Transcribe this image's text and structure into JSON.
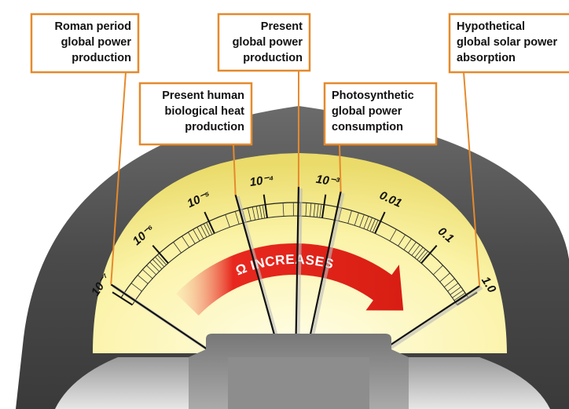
{
  "callouts": [
    {
      "lines": [
        "Roman period",
        "global power",
        "production"
      ]
    },
    {
      "lines": [
        "Present human",
        "biological heat",
        "production"
      ]
    },
    {
      "lines": [
        "Present",
        "global power",
        "production"
      ]
    },
    {
      "lines": [
        "Photosynthetic",
        "global power",
        "consumption"
      ]
    },
    {
      "lines": [
        "Hypothetical",
        "global solar power",
        "absorption"
      ]
    }
  ],
  "scale_labels": [
    "10⁻⁷",
    "10⁻⁶",
    "10⁻⁵",
    "10⁻⁴",
    "10⁻³",
    "0.01",
    "0.1",
    "1.0"
  ],
  "arrow_label": "Ω INCREASES"
}
